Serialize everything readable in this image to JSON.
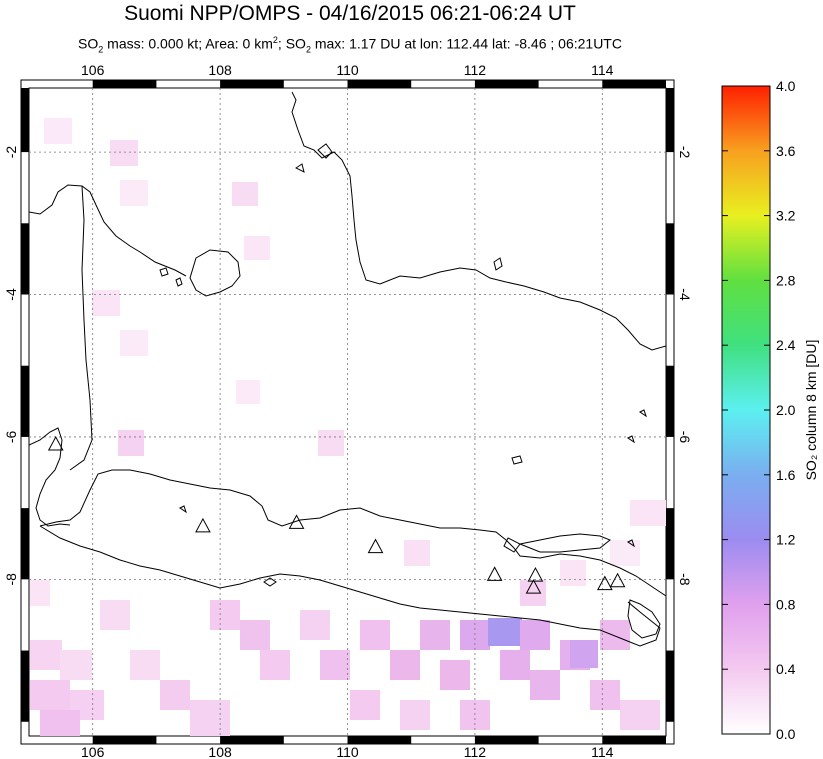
{
  "title": "Suomi NPP/OMPS - 04/16/2015 06:21-06:24 UT",
  "subtitle": {
    "p1": "SO",
    "p1_sub": "2",
    "p2": " mass: 0.000 kt; Area: 0 km",
    "p2_sup": "2",
    "p3": "; SO",
    "p3_sub": "2",
    "p4": " max: 1.17 DU at lon: 112.44 lat: -8.46 ; 06:21UTC"
  },
  "map": {
    "lon_range": [
      105,
      115
    ],
    "lat_range": [
      -10.2,
      -1.1
    ],
    "lon_ticks": [
      "106",
      "108",
      "110",
      "112",
      "114"
    ],
    "lat_ticks": [
      "-2",
      "-4",
      "-6",
      "-8"
    ],
    "lon_tick_values": [
      106,
      108,
      110,
      112,
      114
    ],
    "lat_tick_values": [
      -2,
      -4,
      -6,
      -8
    ],
    "grid": "dotted",
    "volcanoes": [
      {
        "lon": 105.42,
        "lat": -6.1
      },
      {
        "lon": 107.73,
        "lat": -7.25
      },
      {
        "lon": 109.2,
        "lat": -7.2
      },
      {
        "lon": 110.44,
        "lat": -7.54
      },
      {
        "lon": 112.31,
        "lat": -7.93
      },
      {
        "lon": 112.95,
        "lat": -7.94
      },
      {
        "lon": 112.92,
        "lat": -8.11
      },
      {
        "lon": 114.04,
        "lat": -8.06
      },
      {
        "lon": 114.24,
        "lat": -8.02
      }
    ]
  },
  "colorbar": {
    "label": "SO₂ column 8 km [DU]",
    "ticks": [
      "0.0",
      "0.4",
      "0.8",
      "1.2",
      "1.6",
      "2.0",
      "2.4",
      "2.8",
      "3.2",
      "3.6",
      "4.0"
    ],
    "range": [
      0,
      4
    ],
    "colors": [
      "#ffffff",
      "#f4c9f0",
      "#e0a0ee",
      "#9c8cf0",
      "#7aaef0",
      "#5cf0f0",
      "#40e080",
      "#60e040",
      "#e8f020",
      "#f8a020",
      "#ff2000"
    ]
  }
}
